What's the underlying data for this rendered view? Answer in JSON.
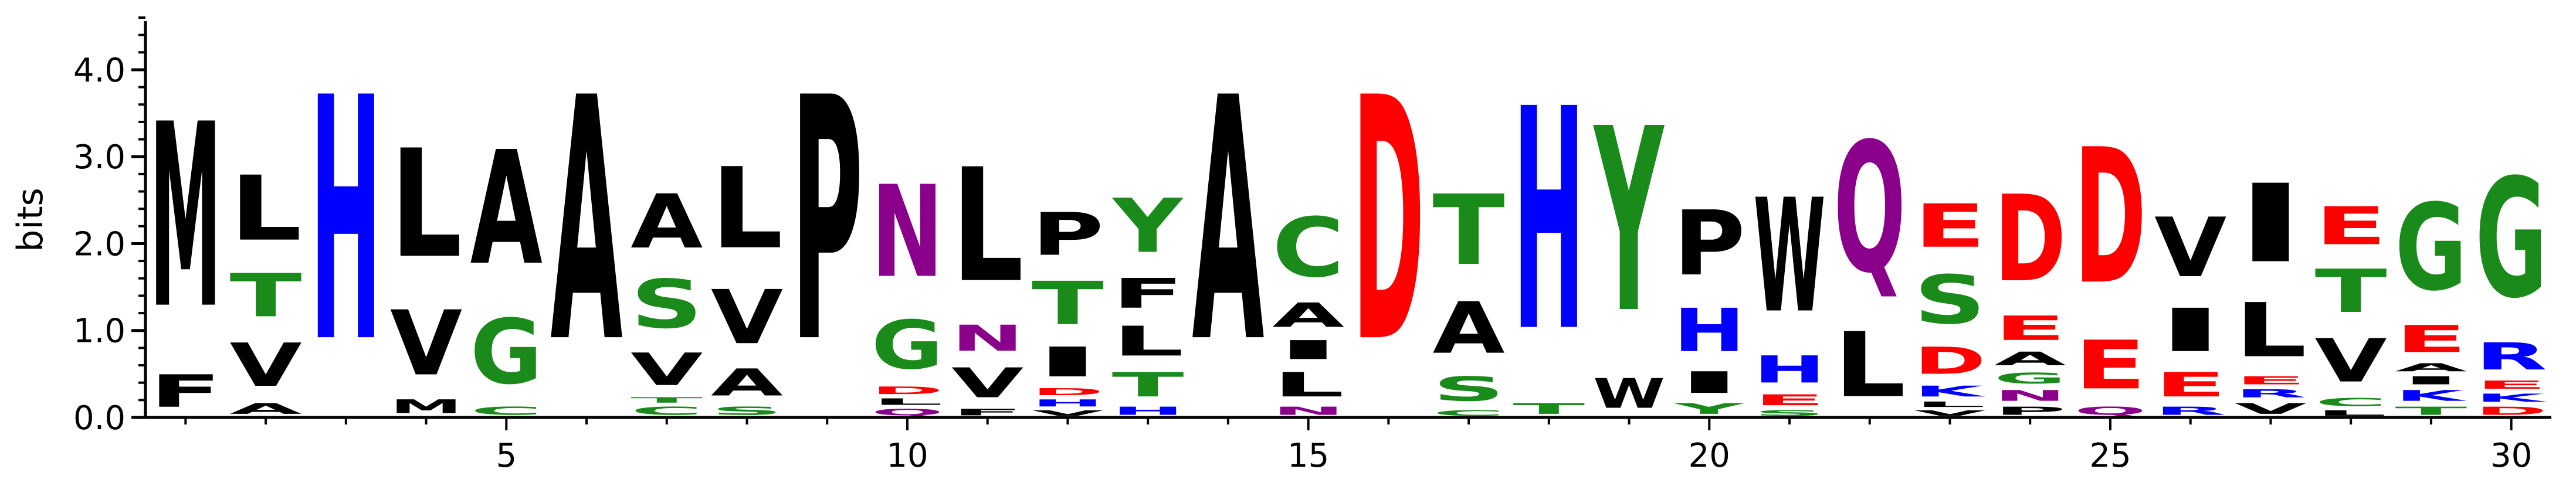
{
  "chart_data": {
    "type": "sequence-logo",
    "ylabel": "bits",
    "ylim": [
      0,
      4.6
    ],
    "xlim": [
      0.5,
      30.5
    ],
    "yticks": [
      {
        "value": 0.0,
        "label": "0.0"
      },
      {
        "value": 1.0,
        "label": "1.0"
      },
      {
        "value": 2.0,
        "label": "2.0"
      },
      {
        "value": 3.0,
        "label": "3.0"
      },
      {
        "value": 4.0,
        "label": "4.0"
      }
    ],
    "xticks": [
      {
        "value": 5,
        "label": "5"
      },
      {
        "value": 10,
        "label": "10"
      },
      {
        "value": 15,
        "label": "15"
      },
      {
        "value": 20,
        "label": "20"
      },
      {
        "value": 25,
        "label": "25"
      },
      {
        "value": 30,
        "label": "30"
      }
    ],
    "colors": {
      "A": "#000000",
      "V": "#000000",
      "L": "#000000",
      "I": "#000000",
      "M": "#000000",
      "F": "#000000",
      "W": "#000000",
      "P": "#000000",
      "G": "#1a8a1a",
      "S": "#1a8a1a",
      "T": "#1a8a1a",
      "C": "#1a8a1a",
      "Y": "#1a8a1a",
      "N": "#8b008b",
      "Q": "#8b008b",
      "D": "#ff0000",
      "E": "#ff0000",
      "K": "#0000ff",
      "R": "#0000ff",
      "H": "#0000ff"
    },
    "positions": [
      {
        "pos": 1,
        "stack": [
          {
            "letter": "F",
            "bits": 0.6
          },
          {
            "letter": "M",
            "bits": 3.4
          }
        ]
      },
      {
        "pos": 2,
        "stack": [
          {
            "letter": "A",
            "bits": 0.2
          },
          {
            "letter": "V",
            "bits": 0.8
          },
          {
            "letter": "T",
            "bits": 0.8
          },
          {
            "letter": "L",
            "bits": 1.2
          }
        ]
      },
      {
        "pos": 3,
        "stack": [
          {
            "letter": "H",
            "bits": 4.5
          }
        ]
      },
      {
        "pos": 4,
        "stack": [
          {
            "letter": "M",
            "bits": 0.25
          },
          {
            "letter": "V",
            "bits": 1.2
          },
          {
            "letter": "L",
            "bits": 2.0
          }
        ]
      },
      {
        "pos": 5,
        "stack": [
          {
            "letter": "C",
            "bits": 0.15
          },
          {
            "letter": "G",
            "bits": 1.2
          },
          {
            "letter": "A",
            "bits": 2.1
          }
        ]
      },
      {
        "pos": 6,
        "stack": [
          {
            "letter": "A",
            "bits": 4.5
          }
        ]
      },
      {
        "pos": 7,
        "stack": [
          {
            "letter": "C",
            "bits": 0.15
          },
          {
            "letter": "T",
            "bits": 0.1
          },
          {
            "letter": "V",
            "bits": 0.6
          },
          {
            "letter": "S",
            "bits": 0.9
          },
          {
            "letter": "A",
            "bits": 1.0
          }
        ]
      },
      {
        "pos": 8,
        "stack": [
          {
            "letter": "S",
            "bits": 0.15
          },
          {
            "letter": "A",
            "bits": 0.5
          },
          {
            "letter": "V",
            "bits": 1.0
          },
          {
            "letter": "L",
            "bits": 1.5
          }
        ]
      },
      {
        "pos": 9,
        "stack": [
          {
            "letter": "P",
            "bits": 4.5
          }
        ]
      },
      {
        "pos": 10,
        "stack": [
          {
            "letter": "Q",
            "bits": 0.12
          },
          {
            "letter": "L",
            "bits": 0.12
          },
          {
            "letter": "D",
            "bits": 0.14
          },
          {
            "letter": "G",
            "bits": 0.9
          },
          {
            "letter": "N",
            "bits": 1.7
          }
        ]
      },
      {
        "pos": 11,
        "stack": [
          {
            "letter": "F",
            "bits": 0.12
          },
          {
            "letter": "V",
            "bits": 0.55
          },
          {
            "letter": "N",
            "bits": 0.48
          },
          {
            "letter": "L",
            "bits": 2.1
          }
        ]
      },
      {
        "pos": 12,
        "stack": [
          {
            "letter": "V",
            "bits": 0.1
          },
          {
            "letter": "H",
            "bits": 0.13
          },
          {
            "letter": "D",
            "bits": 0.13
          },
          {
            "letter": "I",
            "bits": 0.55
          },
          {
            "letter": "T",
            "bits": 0.8
          },
          {
            "letter": "P",
            "bits": 0.79
          }
        ]
      },
      {
        "pos": 13,
        "stack": [
          {
            "letter": "H",
            "bits": 0.15
          },
          {
            "letter": "T",
            "bits": 0.45
          },
          {
            "letter": "L",
            "bits": 0.55
          },
          {
            "letter": "F",
            "bits": 0.55
          },
          {
            "letter": "Y",
            "bits": 1.0
          }
        ]
      },
      {
        "pos": 14,
        "stack": [
          {
            "letter": "A",
            "bits": 4.5
          }
        ]
      },
      {
        "pos": 15,
        "stack": [
          {
            "letter": "N",
            "bits": 0.15
          },
          {
            "letter": "L",
            "bits": 0.45
          },
          {
            "letter": "I",
            "bits": 0.35
          },
          {
            "letter": "A",
            "bits": 0.45
          },
          {
            "letter": "C",
            "bits": 1.1
          }
        ]
      },
      {
        "pos": 16,
        "stack": [
          {
            "letter": "D",
            "bits": 4.5
          }
        ]
      },
      {
        "pos": 17,
        "stack": [
          {
            "letter": "C",
            "bits": 0.1
          },
          {
            "letter": "S",
            "bits": 0.45
          },
          {
            "letter": "A",
            "bits": 0.95
          },
          {
            "letter": "T",
            "bits": 1.3
          }
        ]
      },
      {
        "pos": 18,
        "stack": [
          {
            "letter": "T",
            "bits": 0.2
          },
          {
            "letter": "H",
            "bits": 4.1
          }
        ]
      },
      {
        "pos": 19,
        "stack": [
          {
            "letter": "W",
            "bits": 0.55
          },
          {
            "letter": "Y",
            "bits": 3.4
          }
        ]
      },
      {
        "pos": 20,
        "stack": [
          {
            "letter": "Y",
            "bits": 0.2
          },
          {
            "letter": "I",
            "bits": 0.4
          },
          {
            "letter": "H",
            "bits": 0.8
          },
          {
            "letter": "P",
            "bits": 1.2
          }
        ]
      },
      {
        "pos": 21,
        "stack": [
          {
            "letter": "S",
            "bits": 0.1
          },
          {
            "letter": "E",
            "bits": 0.2
          },
          {
            "letter": "H",
            "bits": 0.5
          },
          {
            "letter": "W",
            "bits": 2.1
          }
        ]
      },
      {
        "pos": 22,
        "stack": [
          {
            "letter": "L",
            "bits": 1.2
          },
          {
            "letter": "Q",
            "bits": 2.4
          }
        ]
      },
      {
        "pos": 23,
        "stack": [
          {
            "letter": "V",
            "bits": 0.1
          },
          {
            "letter": "L",
            "bits": 0.1
          },
          {
            "letter": "K",
            "bits": 0.2
          },
          {
            "letter": "D",
            "bits": 0.5
          },
          {
            "letter": "S",
            "bits": 0.9
          },
          {
            "letter": "E",
            "bits": 0.8
          }
        ]
      },
      {
        "pos": 24,
        "stack": [
          {
            "letter": "P",
            "bits": 0.15
          },
          {
            "letter": "N",
            "bits": 0.2
          },
          {
            "letter": "G",
            "bits": 0.2
          },
          {
            "letter": "A",
            "bits": 0.25
          },
          {
            "letter": "E",
            "bits": 0.45
          },
          {
            "letter": "D",
            "bits": 1.6
          }
        ]
      },
      {
        "pos": 25,
        "stack": [
          {
            "letter": "Q",
            "bits": 0.15
          },
          {
            "letter": "E",
            "bits": 0.9
          },
          {
            "letter": "D",
            "bits": 2.5
          }
        ]
      },
      {
        "pos": 26,
        "stack": [
          {
            "letter": "R",
            "bits": 0.15
          },
          {
            "letter": "E",
            "bits": 0.45
          },
          {
            "letter": "I",
            "bits": 0.8
          },
          {
            "letter": "V",
            "bits": 1.1
          }
        ]
      },
      {
        "pos": 27,
        "stack": [
          {
            "letter": "V",
            "bits": 0.2
          },
          {
            "letter": "R",
            "bits": 0.15
          },
          {
            "letter": "E",
            "bits": 0.15
          },
          {
            "letter": "L",
            "bits": 1.0
          },
          {
            "letter": "I",
            "bits": 1.45
          }
        ]
      },
      {
        "pos": 28,
        "stack": [
          {
            "letter": "L",
            "bits": 0.1
          },
          {
            "letter": "C",
            "bits": 0.15
          },
          {
            "letter": "V",
            "bits": 0.8
          },
          {
            "letter": "T",
            "bits": 0.8
          },
          {
            "letter": "E",
            "bits": 0.7
          }
        ]
      },
      {
        "pos": 29,
        "stack": [
          {
            "letter": "T",
            "bits": 0.15
          },
          {
            "letter": "K",
            "bits": 0.2
          },
          {
            "letter": "I",
            "bits": 0.15
          },
          {
            "letter": "A",
            "bits": 0.15
          },
          {
            "letter": "E",
            "bits": 0.5
          },
          {
            "letter": "G",
            "bits": 1.6
          }
        ]
      },
      {
        "pos": 30,
        "stack": [
          {
            "letter": "D",
            "bits": 0.15
          },
          {
            "letter": "K",
            "bits": 0.15
          },
          {
            "letter": "E",
            "bits": 0.15
          },
          {
            "letter": "R",
            "bits": 0.5
          },
          {
            "letter": "G",
            "bits": 2.2
          }
        ]
      }
    ]
  }
}
